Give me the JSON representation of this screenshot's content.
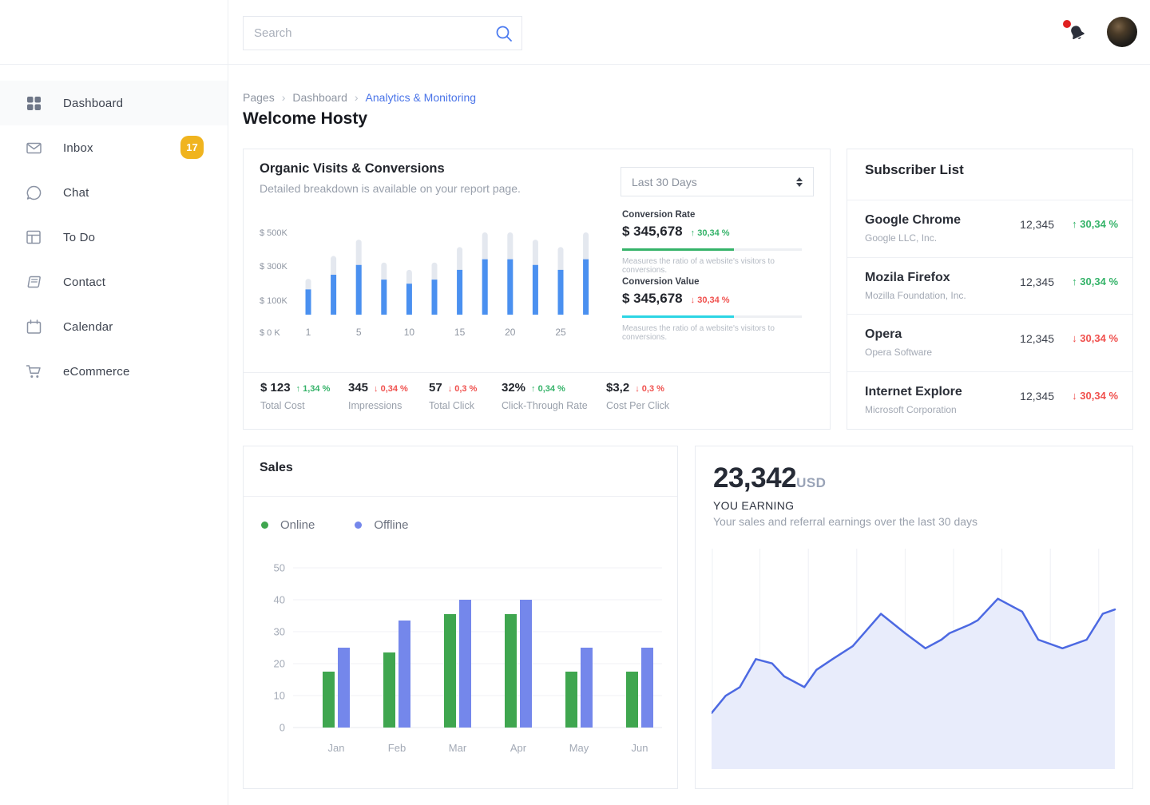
{
  "header": {
    "search_placeholder": "Search"
  },
  "sidebar": {
    "items": [
      {
        "label": "Dashboard",
        "active": true
      },
      {
        "label": "Inbox",
        "badge": "17"
      },
      {
        "label": "Chat"
      },
      {
        "label": "To Do"
      },
      {
        "label": "Contact"
      },
      {
        "label": "Calendar"
      },
      {
        "label": "eCommerce"
      }
    ]
  },
  "breadcrumb": {
    "items": [
      "Pages",
      "Dashboard"
    ],
    "current": "Analytics & Monitoring"
  },
  "page_title": "Welcome Hosty",
  "organic": {
    "title": "Organic Visits & Conversions",
    "subtitle": "Detailed breakdown is available on your report page.",
    "period_select": "Last 30 Days",
    "metrics": [
      {
        "label": "Conversion Rate",
        "value": "$ 345,678",
        "delta": "30,34 %",
        "direction": "up",
        "bar_color": "#35b369",
        "bar_pct": 62,
        "caption": "Measures the ratio of a website's visitors to conversions."
      },
      {
        "label": "Conversion Value",
        "value": "$ 345,678",
        "delta": "30,34 %",
        "direction": "down",
        "bar_color": "#2cd5e4",
        "bar_pct": 62,
        "caption": "Measures the ratio of a website's visitors to conversions."
      }
    ],
    "stats": [
      {
        "value": "$ 123",
        "delta": "1,34 %",
        "direction": "up",
        "label": "Total Cost"
      },
      {
        "value": "345",
        "delta": "0,34 %",
        "direction": "down",
        "label": "Impressions"
      },
      {
        "value": "57",
        "delta": "0,3 %",
        "direction": "down",
        "label": "Total Click"
      },
      {
        "value": "32%",
        "delta": "0,34 %",
        "direction": "up",
        "label": "Click-Through Rate"
      },
      {
        "value": "$3,2",
        "delta": "0,3 %",
        "direction": "down",
        "label": "Cost Per Click"
      }
    ]
  },
  "subscribers": {
    "title": "Subscriber List",
    "rows": [
      {
        "name": "Google Chrome",
        "company": "Google LLC, Inc.",
        "count": "12,345",
        "delta": "30,34 %",
        "direction": "up"
      },
      {
        "name": "Mozila Firefox",
        "company": "Mozilla Foundation, Inc.",
        "count": "12,345",
        "delta": "30,34 %",
        "direction": "up"
      },
      {
        "name": "Opera",
        "company": "Opera Software",
        "count": "12,345",
        "delta": "30,34 %",
        "direction": "down"
      },
      {
        "name": "Internet Explore",
        "company": "Microsoft Corporation",
        "count": "12,345",
        "delta": "30,34 %",
        "direction": "down"
      }
    ]
  },
  "sales": {
    "title": "Sales"
  },
  "earnings": {
    "amount": "23,342",
    "currency": "USD",
    "label": "YOU EARNING",
    "caption": "Your sales and referral earnings over the last 30 days"
  },
  "chart_data": [
    {
      "id": "organic",
      "type": "bar",
      "title": "Organic Visits & Conversions",
      "unit": "$K",
      "ylim": [
        0,
        550
      ],
      "y_tick_labels": [
        "$ 500K",
        "$ 300K",
        "$ 100K",
        "$ 0 K"
      ],
      "y_tick_values": [
        500,
        300,
        100,
        0
      ],
      "x_tick_labels": [
        "1",
        "5",
        "10",
        "15",
        "20",
        "25"
      ],
      "x_tick_bar_index": [
        0,
        2,
        4,
        6,
        8,
        10
      ],
      "series": [
        {
          "name": "total",
          "color": "#e4e8ef",
          "values": [
            220,
            360,
            460,
            320,
            275,
            320,
            415,
            505,
            505,
            460,
            415,
            505
          ]
        },
        {
          "name": "visits",
          "color": "#4a90f0",
          "values": [
            155,
            245,
            305,
            215,
            190,
            215,
            275,
            340,
            340,
            305,
            275,
            340
          ]
        }
      ]
    },
    {
      "id": "sales",
      "type": "bar",
      "title": "Sales",
      "categories": [
        "Jan",
        "Feb",
        "Mar",
        "Apr",
        "May",
        "Jun"
      ],
      "ylim": [
        0,
        50
      ],
      "y_ticks": [
        0,
        10,
        20,
        30,
        40,
        50
      ],
      "legend_position": "top-left",
      "series": [
        {
          "name": "Online",
          "color": "#3fa64f",
          "values": [
            17.5,
            23.5,
            35.5,
            35.5,
            17.5,
            17.5
          ]
        },
        {
          "name": "Offline",
          "color": "#7487eb",
          "values": [
            25,
            33.5,
            40,
            40,
            25,
            25
          ]
        }
      ]
    },
    {
      "id": "earnings",
      "type": "area",
      "title": "YOU EARNING",
      "line_color": "#4c69e2",
      "fill_color": "#e8ecfb",
      "grid": "vertical",
      "gridline_x_percent": [
        0,
        12,
        24,
        36,
        48,
        60,
        72,
        84,
        96
      ],
      "points_x_percent_value_percent": [
        [
          0,
          26
        ],
        [
          3.5,
          34
        ],
        [
          7,
          38
        ],
        [
          11,
          51
        ],
        [
          15,
          49
        ],
        [
          18,
          43
        ],
        [
          23,
          38
        ],
        [
          26,
          46
        ],
        [
          30,
          51
        ],
        [
          35,
          57
        ],
        [
          42,
          72
        ],
        [
          48,
          63
        ],
        [
          53,
          56
        ],
        [
          57,
          60
        ],
        [
          59,
          63
        ],
        [
          64,
          67
        ],
        [
          66,
          69
        ],
        [
          71,
          79
        ],
        [
          77,
          73
        ],
        [
          81,
          60
        ],
        [
          87,
          56
        ],
        [
          93,
          60
        ],
        [
          97,
          72
        ],
        [
          100,
          74
        ]
      ]
    }
  ]
}
